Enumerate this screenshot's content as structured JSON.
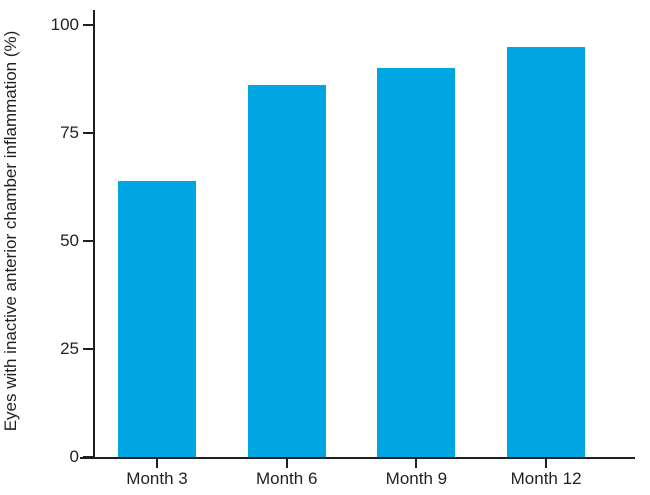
{
  "chart_data": {
    "type": "bar",
    "title": "",
    "categories": [
      "Month 3",
      "Month 6",
      "Month 9",
      "Month 12"
    ],
    "values": [
      64,
      86,
      90,
      95
    ],
    "xlabel": "",
    "ylabel": "Eyes with inactive anterior chamber inflammation (%)",
    "ylim": [
      0,
      100
    ],
    "yticks": [
      0,
      25,
      50,
      75,
      100
    ],
    "grid": false,
    "legend": false,
    "bar_color": "#00A6E2",
    "axis_color": "#231F20",
    "text_color": "#231F20"
  }
}
